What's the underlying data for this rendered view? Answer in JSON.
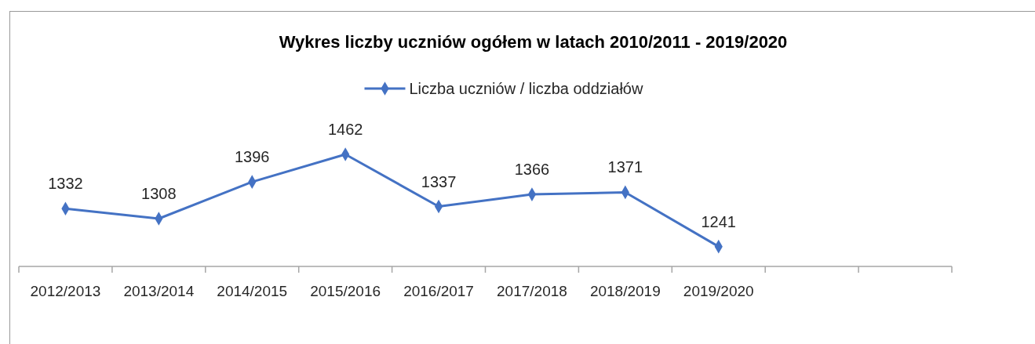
{
  "chart_data": {
    "type": "line",
    "title": "Wykres liczby uczniów ogółem w latach 2010/2011 - 2019/2020",
    "categories": [
      "2012/2013",
      "2013/2014",
      "2014/2015",
      "2015/2016",
      "2016/2017",
      "2017/2018",
      "2018/2019",
      "2019/2020",
      null,
      null
    ],
    "series": [
      {
        "name": "Liczba uczniów / liczba oddziałów",
        "color": "#4472c4",
        "values": [
          1332,
          1308,
          1396,
          1462,
          1337,
          1366,
          1371,
          1241,
          null,
          null
        ]
      }
    ],
    "data_labels": true,
    "legend": "top",
    "marker": "diamond",
    "line_style": "solid",
    "grid": false
  }
}
